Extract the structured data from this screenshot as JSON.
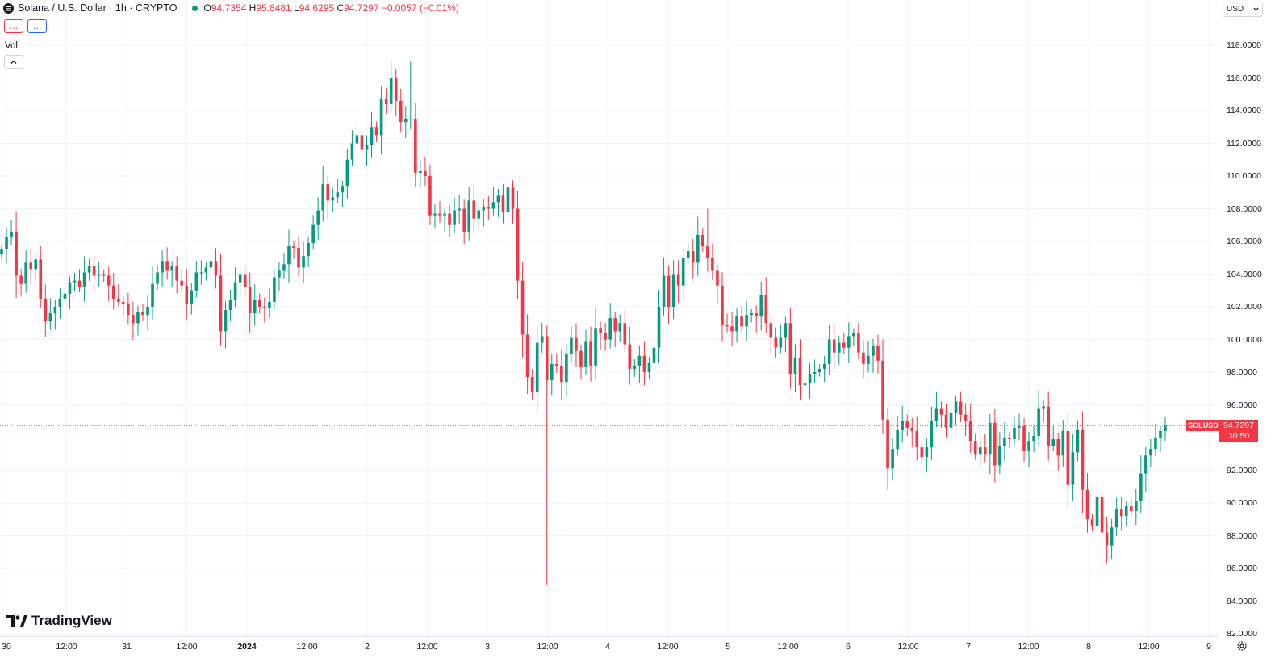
{
  "symbol": {
    "name": "Solana",
    "quote": "U.S. Dollar",
    "interval": "1h",
    "exchange": "CRYPTO",
    "title_text": "Solana / U.S. Dollar · 1h · CRYPTO"
  },
  "ohlc": {
    "o_label": "O",
    "o": "94.7354",
    "h_label": "H",
    "h": "95.8481",
    "l_label": "L",
    "l": "94.6295",
    "c_label": "C",
    "c": "94.7297",
    "change": "−0.0057 (−0.01%)"
  },
  "indicator_buttons": [
    {
      "label": "…"
    },
    {
      "label": "…"
    }
  ],
  "volume_label": "Vol",
  "collapse_glyph": "^",
  "brand": "TradingView",
  "currency_select": {
    "value": "USD"
  },
  "last_price": {
    "symbol_tag": "SOLUSD",
    "price": "94.7297",
    "countdown": "30:50"
  },
  "colors": {
    "up": "#089981",
    "down": "#f23645",
    "grid": "#f0f3fa",
    "text": "#131722"
  },
  "icons": {
    "settings": "settings-icon",
    "chevron": "chevron-down-icon"
  },
  "chart_data": {
    "type": "candlestick",
    "interval": "1h",
    "ylim": [
      82,
      119
    ],
    "y_ticks": [
      "118.0000",
      "116.0000",
      "114.0000",
      "112.0000",
      "110.0000",
      "108.0000",
      "106.0000",
      "104.0000",
      "102.0000",
      "100.0000",
      "98.0000",
      "96.0000",
      "94.0000",
      "92.0000",
      "90.0000",
      "88.0000",
      "86.0000",
      "84.0000",
      "82.0000"
    ],
    "x_ticks": [
      "30",
      "12:00",
      "31",
      "12:00",
      "2024",
      "12:00",
      "2",
      "12:00",
      "3",
      "12:00",
      "4",
      "12:00",
      "5",
      "12:00",
      "6",
      "12:00",
      "7",
      "12:00",
      "8",
      "12:00",
      "9"
    ],
    "grid": true,
    "last_close": 94.7297,
    "closes": [
      105.5,
      106.3,
      106.6,
      103.9,
      103.4,
      104.7,
      104.3,
      104.9,
      102.5,
      101.1,
      101.6,
      102.0,
      102.5,
      102.8,
      103.5,
      103.6,
      103.2,
      104.1,
      104.5,
      103.9,
      104.0,
      103.9,
      103.3,
      102.5,
      102.3,
      102.2,
      101.5,
      101.0,
      101.7,
      101.5,
      102.0,
      103.4,
      104.1,
      104.8,
      104.2,
      104.5,
      103.6,
      103.3,
      102.2,
      103.0,
      104.1,
      104.1,
      104.4,
      104.8,
      103.9,
      100.5,
      101.8,
      102.4,
      103.5,
      104.0,
      103.2,
      101.6,
      102.4,
      102.0,
      101.9,
      102.3,
      103.8,
      104.2,
      104.6,
      105.7,
      105.6,
      104.4,
      105.1,
      105.9,
      107.0,
      107.9,
      109.5,
      108.5,
      108.7,
      109.0,
      109.4,
      111.0,
      112.0,
      112.5,
      111.6,
      111.9,
      113.0,
      112.5,
      114.7,
      114.4,
      116.0,
      114.6,
      113.3,
      113.5,
      113.5,
      110.2,
      110.3,
      110.0,
      107.6,
      107.7,
      107.6,
      107.7,
      107.0,
      107.9,
      108.0,
      106.6,
      108.5,
      107.4,
      107.9,
      108.1,
      108.0,
      108.4,
      108.8,
      107.8,
      109.3,
      108.0,
      103.6,
      100.3,
      97.7,
      96.8,
      99.8,
      100.2,
      97.5,
      98.5,
      98.4,
      97.4,
      99.1,
      100.1,
      99.3,
      98.3,
      99.9,
      98.4,
      100.7,
      100.4,
      100.0,
      101.3,
      100.5,
      101.0,
      99.7,
      98.2,
      98.4,
      99.0,
      98.0,
      98.6,
      99.5,
      102.0,
      103.9,
      102.0,
      104.0,
      103.3,
      105.0,
      105.4,
      104.7,
      106.4,
      105.7,
      105.0,
      104.2,
      103.3,
      100.9,
      100.8,
      100.5,
      101.4,
      100.8,
      101.5,
      101.6,
      101.4,
      102.7,
      101.0,
      100.1,
      99.5,
      100.1,
      101.0,
      97.9,
      98.9,
      97.2,
      97.3,
      97.9,
      98.0,
      98.2,
      98.5,
      100.0,
      99.2,
      99.8,
      99.5,
      100.2,
      100.4,
      99.2,
      98.5,
      99.0,
      99.6,
      98.7,
      95.1,
      92.1,
      93.3,
      94.5,
      95.0,
      94.6,
      94.4,
      93.4,
      92.8,
      93.4,
      95.0,
      95.8,
      95.4,
      94.6,
      95.5,
      96.2,
      95.4,
      95.0,
      93.8,
      93.0,
      93.4,
      93.0,
      94.9,
      92.3,
      93.5,
      94.0,
      93.9,
      94.6,
      94.7,
      93.2,
      93.8,
      94.1,
      95.8,
      95.9,
      93.5,
      93.9,
      92.9,
      94.4,
      91.1,
      93.1,
      94.5,
      90.8,
      89.0,
      88.6,
      90.4,
      88.2,
      87.4,
      88.5,
      89.6,
      89.2,
      89.8,
      89.5,
      90.1,
      91.8,
      92.9,
      93.3,
      94.0,
      94.4,
      94.7297
    ],
    "volume": "hidden (indicator collapsed)"
  }
}
